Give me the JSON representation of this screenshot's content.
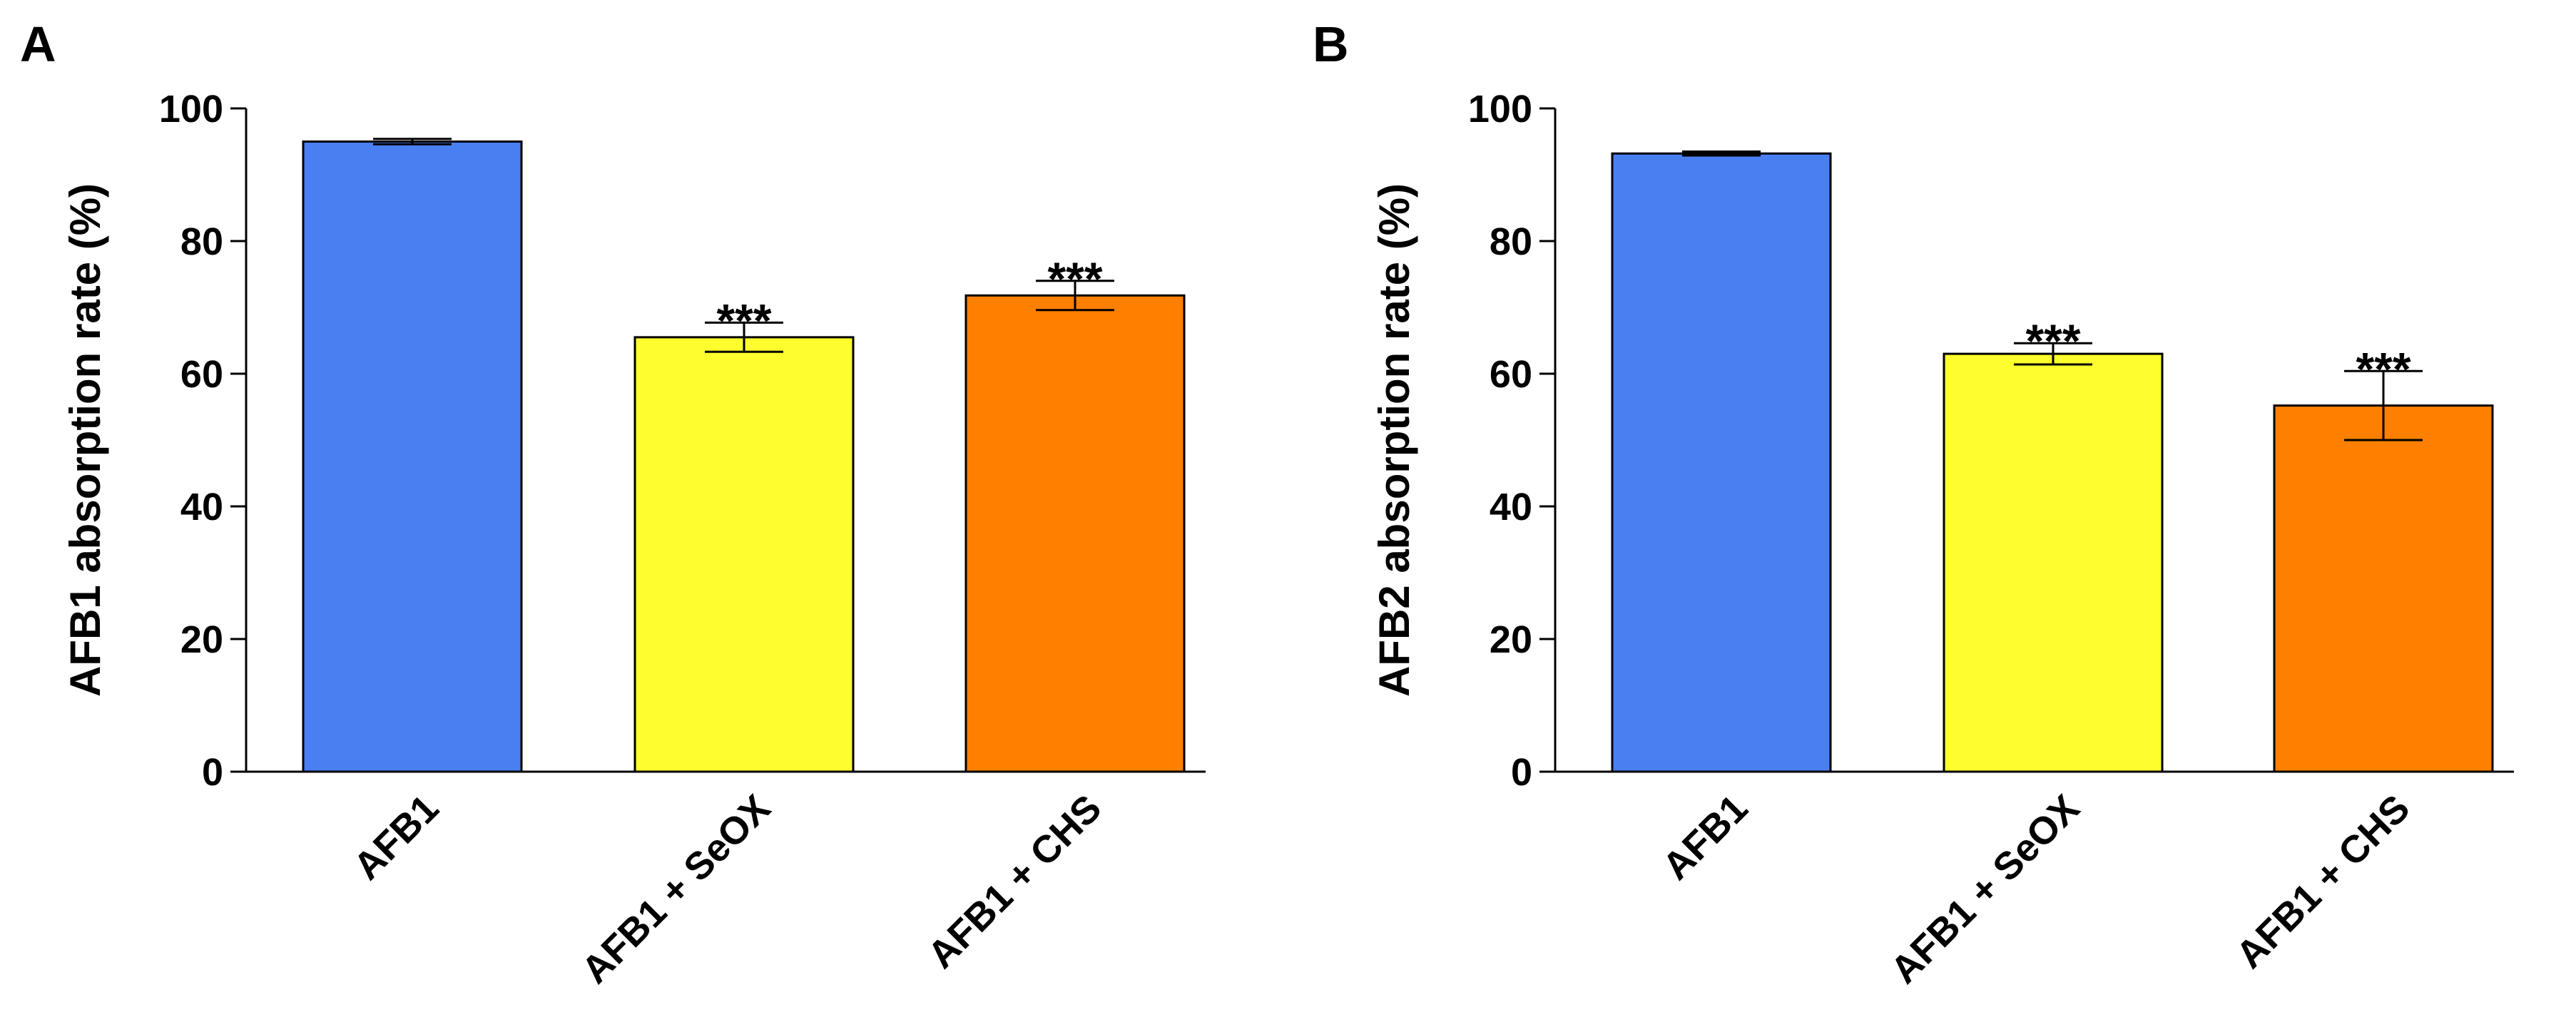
{
  "chart_data": [
    {
      "panel": "A",
      "type": "bar",
      "ylabel": "AFB1 absorption rate  (%)",
      "ylim": [
        0,
        100
      ],
      "yticks": [
        0,
        20,
        40,
        60,
        80,
        100
      ],
      "ytick_labels": [
        "0",
        "20",
        "40",
        "60",
        "80",
        "100"
      ],
      "categories": [
        "AFB1",
        "AFB1 + SeOX",
        "AFB1 + CHS"
      ],
      "values": [
        95,
        65.5,
        71.8
      ],
      "errors": [
        0.4,
        2.2,
        2.2
      ],
      "colors": [
        "#4a7ff2",
        "#fefd2d",
        "#ff8000"
      ],
      "annotations": [
        "",
        "***",
        "***"
      ]
    },
    {
      "panel": "B",
      "type": "bar",
      "ylabel": "AFB2 absorption rate  (%)",
      "ylim": [
        0,
        100
      ],
      "yticks": [
        0,
        20,
        40,
        60,
        80,
        100
      ],
      "ytick_labels": [
        "0",
        "20",
        "40",
        "60",
        "80",
        "100"
      ],
      "categories": [
        "AFB1",
        "AFB1 + SeOX",
        "AFB1 + CHS"
      ],
      "values": [
        93.2,
        63,
        55.2
      ],
      "errors": [
        0.3,
        1.6,
        5.2
      ],
      "colors": [
        "#4a7ff2",
        "#fefd2d",
        "#ff8000"
      ],
      "annotations": [
        "",
        "***",
        "***"
      ]
    }
  ]
}
